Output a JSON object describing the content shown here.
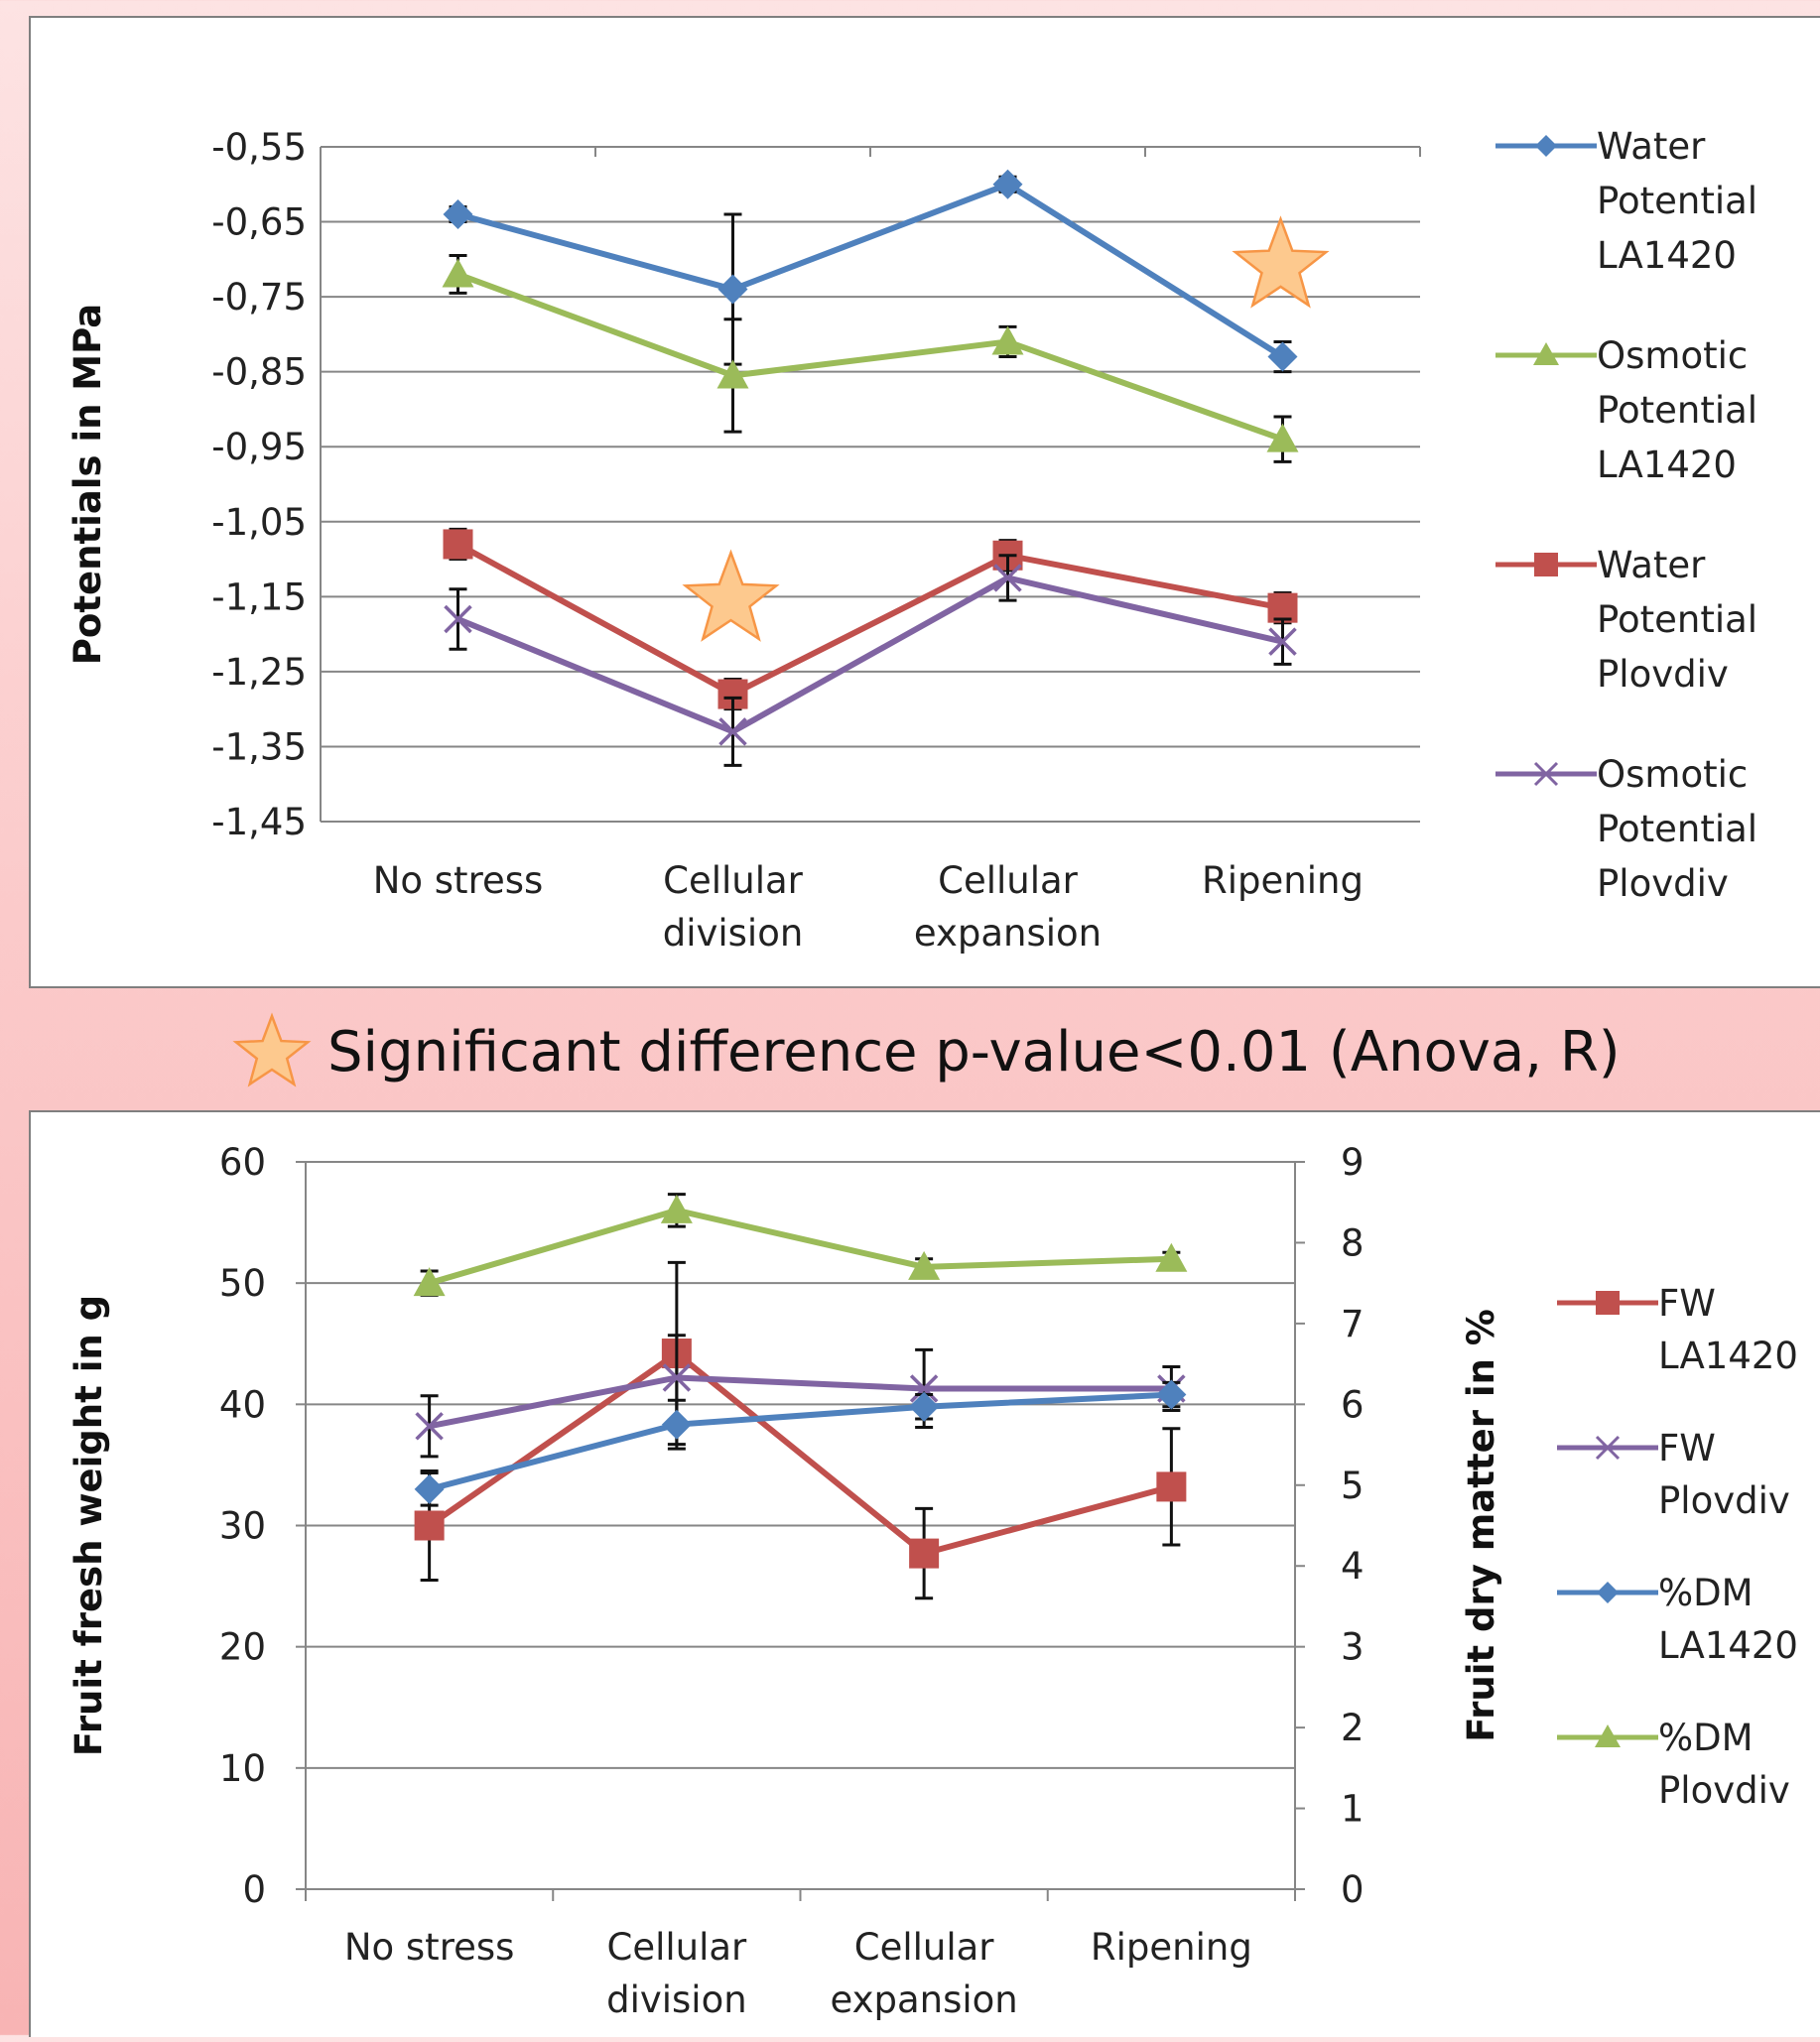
{
  "note": {
    "text": "Significant difference p-value<0.01 (Anova, R)",
    "icon": "star-icon",
    "star_fill": "#fdc98e",
    "star_stroke": "#f79646"
  },
  "chart_data": [
    {
      "type": "line",
      "title": "",
      "xlabel": "",
      "ylabel": "Potentials in MPa",
      "categories": [
        [
          "No stress"
        ],
        [
          "Cellular",
          "division"
        ],
        [
          "Cellular",
          "expansion"
        ],
        [
          "Ripening"
        ]
      ],
      "ylim": [
        -1.45,
        -0.55
      ],
      "ytick_values": [
        -0.55,
        -0.65,
        -0.75,
        -0.85,
        -0.95,
        -1.05,
        -1.15,
        -1.25,
        -1.35,
        -1.45
      ],
      "ytick_labels": [
        "-0,55",
        "-0,65",
        "-0,75",
        "-0,85",
        "-0,95",
        "-1,05",
        "-1,15",
        "-1,25",
        "-1,35",
        "-1,45"
      ],
      "grid": true,
      "legend_position": "right",
      "series": [
        {
          "name": [
            "Water",
            "Potential",
            "LA1420"
          ],
          "color": "#4f81bd",
          "marker": "diamond",
          "values": [
            -0.64,
            -0.74,
            -0.6,
            -0.83
          ],
          "errors": [
            0.01,
            0.1,
            0.01,
            0.02
          ]
        },
        {
          "name": [
            "Osmotic",
            "Potential",
            "LA1420"
          ],
          "color": "#9bbb59",
          "marker": "triangle",
          "values": [
            -0.72,
            -0.855,
            -0.81,
            -0.94
          ],
          "errors": [
            0.025,
            0.075,
            0.02,
            0.03
          ]
        },
        {
          "name": [
            "Water",
            "Potential",
            "Plovdiv"
          ],
          "color": "#c0504d",
          "marker": "square",
          "values": [
            -1.08,
            -1.28,
            -1.095,
            -1.165
          ],
          "errors": [
            0.02,
            0.02,
            0.02,
            0.02
          ]
        },
        {
          "name": [
            "Osmotic",
            "Potential",
            "Plovdiv"
          ],
          "color": "#8064a2",
          "marker": "x",
          "values": [
            -1.18,
            -1.33,
            -1.125,
            -1.21
          ],
          "errors": [
            0.04,
            0.045,
            0.03,
            0.03
          ]
        }
      ],
      "significance_stars": [
        {
          "category_index": 1,
          "y": -1.155
        },
        {
          "category_index": 3,
          "y": -0.71
        }
      ]
    },
    {
      "type": "line",
      "title": "",
      "xlabel": "",
      "ylabel": "Fruit fresh weight in g",
      "y2label": "Fruit dry matter in %",
      "categories": [
        [
          "No stress"
        ],
        [
          "Cellular",
          "division"
        ],
        [
          "Cellular",
          "expansion"
        ],
        [
          "Ripening"
        ]
      ],
      "ylim": [
        0,
        60
      ],
      "y2lim": [
        0,
        9
      ],
      "ytick_labels": [
        "0",
        "10",
        "20",
        "30",
        "40",
        "50",
        "60"
      ],
      "y2tick_labels": [
        "0",
        "1",
        "2",
        "3",
        "4",
        "5",
        "6",
        "7",
        "8",
        "9"
      ],
      "grid": true,
      "legend_position": "right",
      "series": [
        {
          "name": [
            "FW",
            "LA1420"
          ],
          "axis": "left",
          "color": "#c0504d",
          "marker": "square",
          "values": [
            30,
            44.2,
            27.7,
            33.2
          ],
          "errors": [
            4.5,
            7.5,
            3.7,
            4.8
          ]
        },
        {
          "name": [
            "FW",
            "Plovdiv"
          ],
          "axis": "left",
          "color": "#8064a2",
          "marker": "x",
          "values": [
            38.2,
            42.2,
            41.3,
            41.3
          ],
          "errors": [
            2.5,
            3.5,
            3.2,
            1.8
          ]
        },
        {
          "name": [
            "%DM",
            "LA1420"
          ],
          "axis": "right",
          "color": "#4f81bd",
          "marker": "diamond",
          "values": [
            4.95,
            5.75,
            5.97,
            6.12
          ],
          "errors": [
            0.2,
            0.3,
            0.15,
            0.15
          ]
        },
        {
          "name": [
            "%DM",
            "Plovdiv"
          ],
          "axis": "right",
          "color": "#9bbb59",
          "marker": "triangle",
          "values": [
            7.5,
            8.4,
            7.7,
            7.8
          ],
          "errors": [
            0.15,
            0.2,
            0.1,
            0.08
          ]
        }
      ]
    }
  ]
}
